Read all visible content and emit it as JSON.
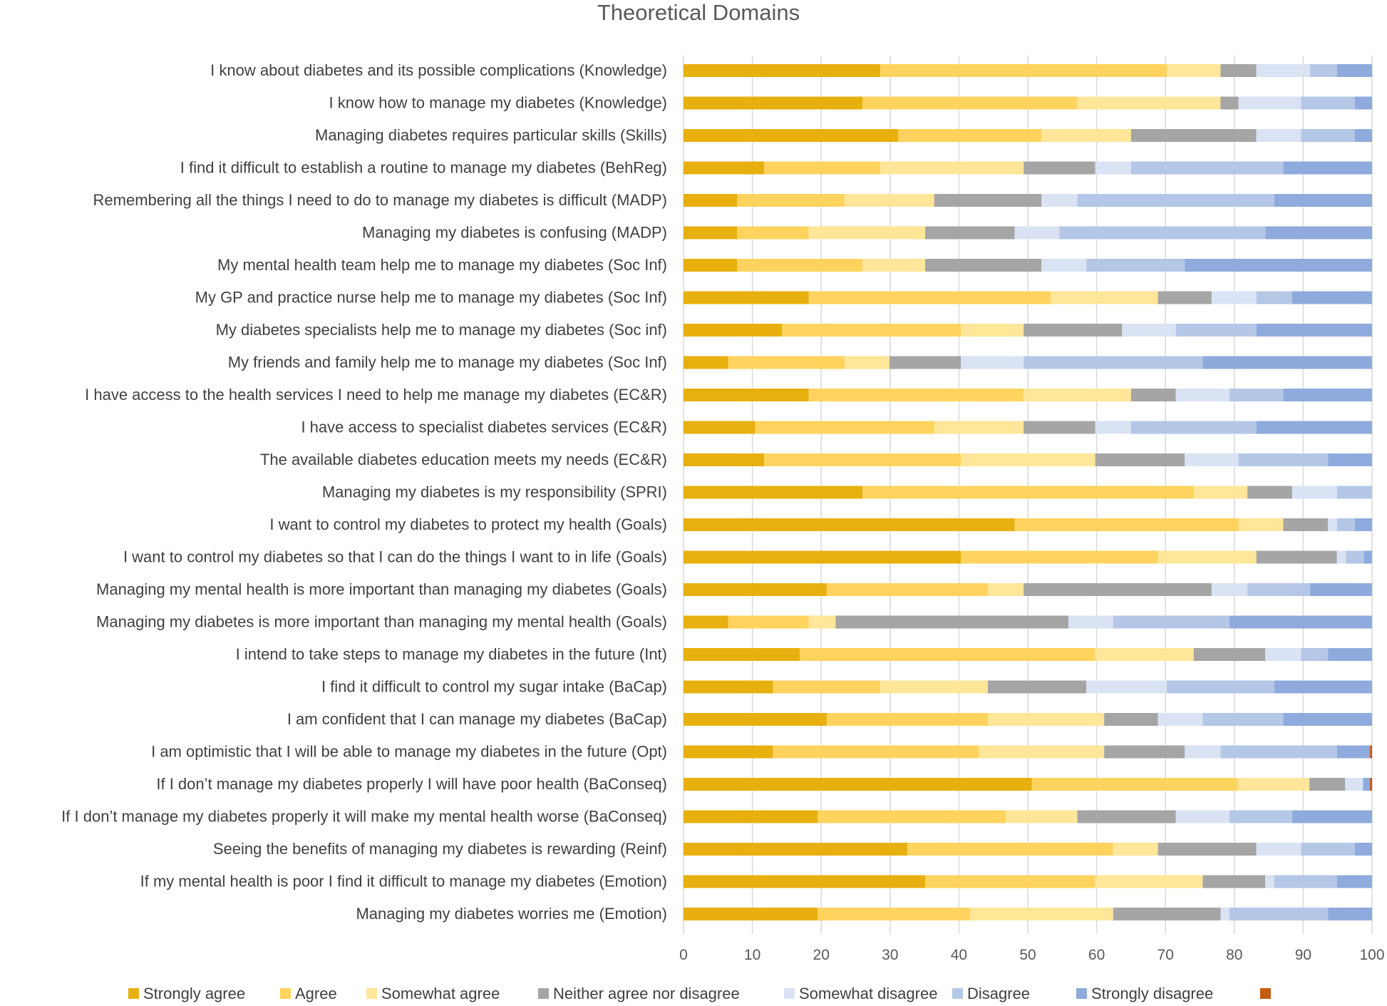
{
  "chart_data": {
    "type": "bar",
    "orientation": "horizontal",
    "stacked": true,
    "title": "Theoretical Domains",
    "xlabel": "",
    "ylabel": "",
    "xlim": [
      0,
      100
    ],
    "xticks": [
      0,
      10,
      20,
      30,
      40,
      50,
      60,
      70,
      80,
      90,
      100
    ],
    "grid": "vertical",
    "legend_position": "bottom",
    "categories": [
      "I know about diabetes and its possible complications (Knowledge)",
      "I know how to manage my diabetes (Knowledge)",
      "Managing diabetes requires particular skills (Skills)",
      "I find it difficult to establish a routine to manage my diabetes (BehReg)",
      "Remembering all the things I need to do to manage my diabetes is difficult (MADP)",
      "Managing my diabetes is confusing  (MADP)",
      "My mental health team help me to manage my diabetes (Soc Inf)",
      "My GP and practice nurse help me to manage my diabetes (Soc Inf)",
      "My diabetes specialists help me to manage my diabetes (Soc inf)",
      "My friends and family help me to manage my diabetes (Soc Inf)",
      "I have access to the health services I need to help me manage my diabetes (EC&R)",
      "I have access to specialist diabetes services (EC&R)",
      "The available diabetes education meets my needs (EC&R)",
      "Managing my diabetes is my responsibility (SPRI)",
      "I want to control my diabetes to protect my health (Goals)",
      "I want to control my diabetes so that I can do the things I want to in life (Goals)",
      "Managing my mental health is more important than managing my diabetes (Goals)",
      "Managing my diabetes is more important than managing my mental health (Goals)",
      "I intend to take steps to manage my diabetes in the future (Int)",
      "I find it difficult to control my sugar intake (BaCap)",
      "I am confident that I can manage my diabetes (BaCap)",
      "I am optimistic that I will be able to manage my diabetes in the future (Opt)",
      "If I don’t manage my diabetes properly I will have poor health (BaConseq)",
      "If I don’t manage my diabetes properly it will make my mental health worse (BaConseq)",
      "Seeing the benefits of managing my diabetes is rewarding (Reinf)",
      "If my mental health is poor I find it difficult to manage my diabetes (Emotion)",
      "Managing my diabetes worries me (Emotion)"
    ],
    "series": [
      {
        "name": "Strongly agree",
        "color": "#E8B00F",
        "values": [
          28.6,
          26,
          31.2,
          11.7,
          7.8,
          7.8,
          7.8,
          18.2,
          14.3,
          6.5,
          18.2,
          10.4,
          11.7,
          26,
          48.1,
          40.3,
          20.8,
          6.5,
          16.9,
          13,
          20.8,
          13,
          50.6,
          19.5,
          32.5,
          35.1,
          19.5
        ]
      },
      {
        "name": "Agree",
        "color": "#FFD35E",
        "values": [
          41.6,
          31.2,
          20.8,
          16.9,
          15.6,
          10.4,
          18.2,
          35.1,
          26,
          16.9,
          31.2,
          26,
          28.6,
          48.1,
          32.5,
          28.6,
          23.4,
          11.7,
          42.9,
          15.6,
          23.4,
          29.9,
          29.9,
          27.3,
          29.9,
          24.7,
          22.1
        ]
      },
      {
        "name": "Somewhat agree",
        "color": "#FFE699",
        "values": [
          7.8,
          20.8,
          13,
          20.8,
          13,
          16.9,
          9.1,
          15.6,
          9.1,
          6.5,
          15.6,
          13,
          19.5,
          7.8,
          6.5,
          14.3,
          5.2,
          3.9,
          14.3,
          15.6,
          16.9,
          18.2,
          10.4,
          10.4,
          6.5,
          15.6,
          20.8
        ]
      },
      {
        "name": "Neither agree nor disagree",
        "color": "#A5A5A5",
        "values": [
          5.2,
          2.6,
          18.2,
          10.4,
          15.6,
          13,
          16.9,
          7.8,
          14.3,
          10.4,
          6.5,
          10.4,
          13,
          6.5,
          6.5,
          11.7,
          27.3,
          33.8,
          10.4,
          14.3,
          7.8,
          11.7,
          5.2,
          14.3,
          14.3,
          9.1,
          15.6
        ]
      },
      {
        "name": "Somewhat disagree",
        "color": "#DAE3F3",
        "values": [
          7.8,
          9.1,
          6.5,
          5.2,
          5.2,
          6.5,
          6.5,
          6.5,
          7.8,
          9.1,
          7.8,
          5.2,
          7.8,
          6.5,
          1.3,
          1.3,
          5.2,
          6.5,
          5.2,
          11.7,
          6.5,
          5.2,
          2.6,
          7.8,
          6.5,
          1.3,
          1.3
        ]
      },
      {
        "name": "Disagree",
        "color": "#B4C7E7",
        "values": [
          3.9,
          7.8,
          7.8,
          22.1,
          28.6,
          29.9,
          14.3,
          5.2,
          11.7,
          26,
          7.8,
          18.2,
          13,
          5.1,
          2.6,
          2.6,
          9.1,
          16.9,
          3.9,
          15.6,
          11.7,
          16.9,
          0,
          9.1,
          7.8,
          9.1,
          14.3
        ]
      },
      {
        "name": "Strongly disagree",
        "color": "#8FAADC",
        "values": [
          5.1,
          2.5,
          2.5,
          12.9,
          14.2,
          15.5,
          27.3,
          11.6,
          16.8,
          24.6,
          12.9,
          16.8,
          6.4,
          0,
          2.5,
          1.2,
          9,
          20.7,
          6.4,
          14.2,
          12.9,
          4.8,
          1.0,
          11.6,
          2.5,
          5.1,
          6.4
        ]
      },
      {
        "name": "",
        "color": "#C55A11",
        "values": [
          0,
          0,
          0,
          0,
          0,
          0,
          0,
          0,
          0,
          0,
          0,
          0,
          0,
          0,
          0,
          0,
          0,
          0,
          0,
          0,
          0,
          0.3,
          0.3,
          0,
          0,
          0,
          0
        ]
      }
    ]
  }
}
